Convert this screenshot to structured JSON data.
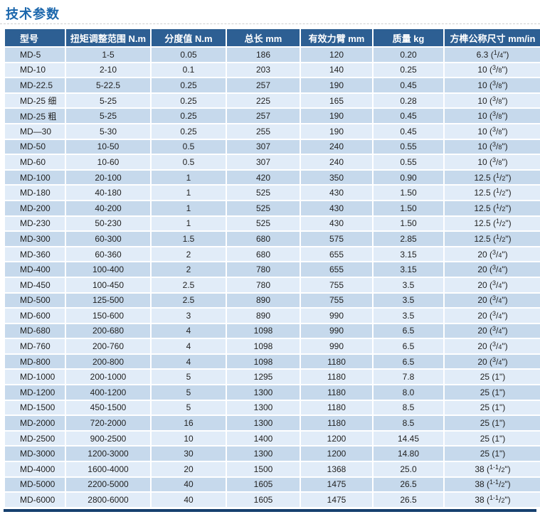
{
  "page_title": "技术参数",
  "colors": {
    "header_bg": "#2d5f93",
    "row_odd": "#c6d9ec",
    "row_even": "#e1ecf8",
    "title": "#1a66ac",
    "bottom_bar": "#16406f"
  },
  "table": {
    "columns": [
      "型号",
      "扭矩调整范围 N.m",
      "分度值 N.m",
      "总长 mm",
      "有效力臂 mm",
      "质量 kg",
      "方榫公称尺寸 mm/in"
    ],
    "rows": [
      [
        "MD-5",
        "1-5",
        "0.05",
        "186",
        "120",
        "0.20",
        "6.3 (1/4\")"
      ],
      [
        "MD-10",
        "2-10",
        "0.1",
        "203",
        "140",
        "0.25",
        "10 (3/8\")"
      ],
      [
        "MD-22.5",
        "5-22.5",
        "0.25",
        "257",
        "190",
        "0.45",
        "10 (3/8\")"
      ],
      [
        "MD-25 细",
        "5-25",
        "0.25",
        "225",
        "165",
        "0.28",
        "10 (3/8\")"
      ],
      [
        "MD-25 粗",
        "5-25",
        "0.25",
        "257",
        "190",
        "0.45",
        "10 (3/8\")"
      ],
      [
        "MD—30",
        "5-30",
        "0.25",
        "255",
        "190",
        "0.45",
        "10 (3/8\")"
      ],
      [
        "MD-50",
        "10-50",
        "0.5",
        "307",
        "240",
        "0.55",
        "10 (3/8\")"
      ],
      [
        "MD-60",
        "10-60",
        "0.5",
        "307",
        "240",
        "0.55",
        "10 (3/8\")"
      ],
      [
        "MD-100",
        "20-100",
        "1",
        "420",
        "350",
        "0.90",
        "12.5 (1/2\")"
      ],
      [
        "MD-180",
        "40-180",
        "1",
        "525",
        "430",
        "1.50",
        "12.5 (1/2\")"
      ],
      [
        "MD-200",
        "40-200",
        "1",
        "525",
        "430",
        "1.50",
        "12.5 (1/2\")"
      ],
      [
        "MD-230",
        "50-230",
        "1",
        "525",
        "430",
        "1.50",
        "12.5 (1/2\")"
      ],
      [
        "MD-300",
        "60-300",
        "1.5",
        "680",
        "575",
        "2.85",
        "12.5 (1/2\")"
      ],
      [
        "MD-360",
        "60-360",
        "2",
        "680",
        "655",
        "3.15",
        "20 (3/4\")"
      ],
      [
        "MD-400",
        "100-400",
        "2",
        "780",
        "655",
        "3.15",
        "20 (3/4\")"
      ],
      [
        "MD-450",
        "100-450",
        "2.5",
        "780",
        "755",
        "3.5",
        "20 (3/4\")"
      ],
      [
        "MD-500",
        "125-500",
        "2.5",
        "890",
        "755",
        "3.5",
        "20 (3/4\")"
      ],
      [
        "MD-600",
        "150-600",
        "3",
        "890",
        "990",
        "3.5",
        "20 (3/4\")"
      ],
      [
        "MD-680",
        "200-680",
        "4",
        "1098",
        "990",
        "6.5",
        "20 (3/4\")"
      ],
      [
        "MD-760",
        "200-760",
        "4",
        "1098",
        "990",
        "6.5",
        "20 (3/4\")"
      ],
      [
        "MD-800",
        "200-800",
        "4",
        "1098",
        "1180",
        "6.5",
        "20 (3/4\")"
      ],
      [
        "MD-1000",
        "200-1000",
        "5",
        "1295",
        "1180",
        "7.8",
        "25 (1\")"
      ],
      [
        "MD-1200",
        "400-1200",
        "5",
        "1300",
        "1180",
        "8.0",
        "25 (1\")"
      ],
      [
        "MD-1500",
        "450-1500",
        "5",
        "1300",
        "1180",
        "8.5",
        "25 (1\")"
      ],
      [
        "MD-2000",
        "720-2000",
        "16",
        "1300",
        "1180",
        "8.5",
        "25 (1\")"
      ],
      [
        "MD-2500",
        "900-2500",
        "10",
        "1400",
        "1200",
        "14.45",
        "25 (1\")"
      ],
      [
        "MD-3000",
        "1200-3000",
        "30",
        "1300",
        "1200",
        "14.80",
        "25 (1\")"
      ],
      [
        "MD-4000",
        "1600-4000",
        "20",
        "1500",
        "1368",
        "25.0",
        "38 (1-1/2\")"
      ],
      [
        "MD-5000",
        "2200-5000",
        "40",
        "1605",
        "1475",
        "26.5",
        "38 (1-1/2\")"
      ],
      [
        "MD-6000",
        "2800-6000",
        "40",
        "1605",
        "1475",
        "26.5",
        "38 (1-1/2\")"
      ]
    ]
  }
}
